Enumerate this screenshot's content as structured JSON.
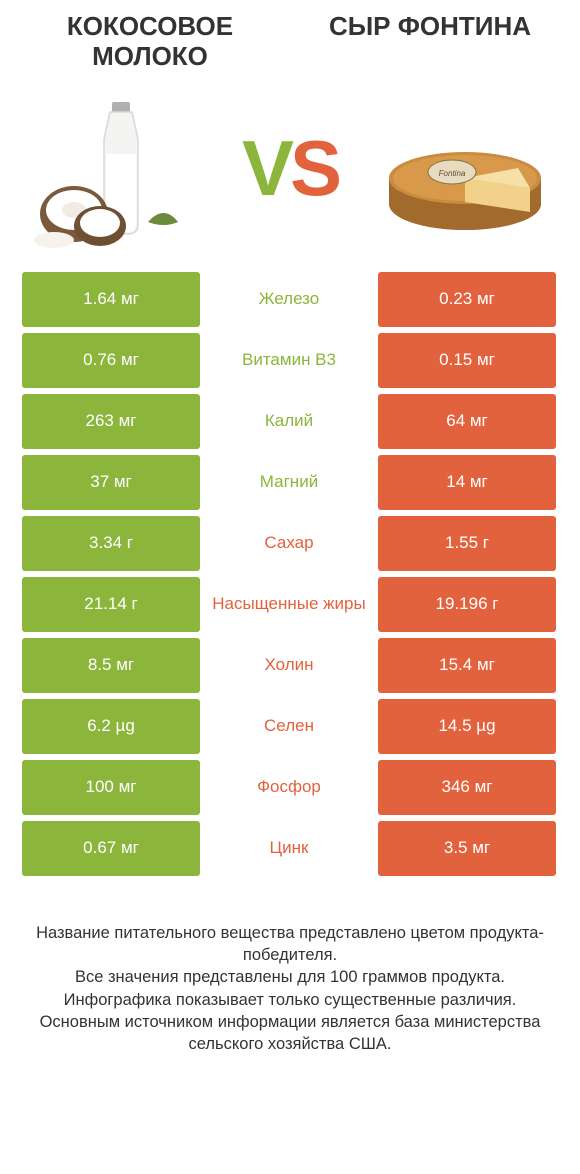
{
  "colors": {
    "left": "#8bb53b",
    "right": "#e2623d",
    "bg": "#ffffff"
  },
  "header": {
    "left_title": "Кокосовое молоко",
    "right_title": "Сыр Фонтина",
    "vs_v": "V",
    "vs_s": "S"
  },
  "rows": [
    {
      "left": "1.64 мг",
      "label": "Железо",
      "right": "0.23 мг",
      "winner": "left"
    },
    {
      "left": "0.76 мг",
      "label": "Витамин B3",
      "right": "0.15 мг",
      "winner": "left"
    },
    {
      "left": "263 мг",
      "label": "Калий",
      "right": "64 мг",
      "winner": "left"
    },
    {
      "left": "37 мг",
      "label": "Магний",
      "right": "14 мг",
      "winner": "left"
    },
    {
      "left": "3.34 г",
      "label": "Сахар",
      "right": "1.55 г",
      "winner": "right"
    },
    {
      "left": "21.14 г",
      "label": "Насыщенные жиры",
      "right": "19.196 г",
      "winner": "right"
    },
    {
      "left": "8.5 мг",
      "label": "Холин",
      "right": "15.4 мг",
      "winner": "right"
    },
    {
      "left": "6.2 µg",
      "label": "Селен",
      "right": "14.5 µg",
      "winner": "right"
    },
    {
      "left": "100 мг",
      "label": "Фосфор",
      "right": "346 мг",
      "winner": "right"
    },
    {
      "left": "0.67 мг",
      "label": "Цинк",
      "right": "3.5 мг",
      "winner": "right"
    }
  ],
  "footer": {
    "line1": "Название питательного вещества представлено цветом продукта-победителя.",
    "line2": "Все значения представлены для 100 граммов продукта.",
    "line3": "Инфографика показывает только существенные различия.",
    "line4": "Основным источником информации является база министерства сельского хозяйства США."
  }
}
